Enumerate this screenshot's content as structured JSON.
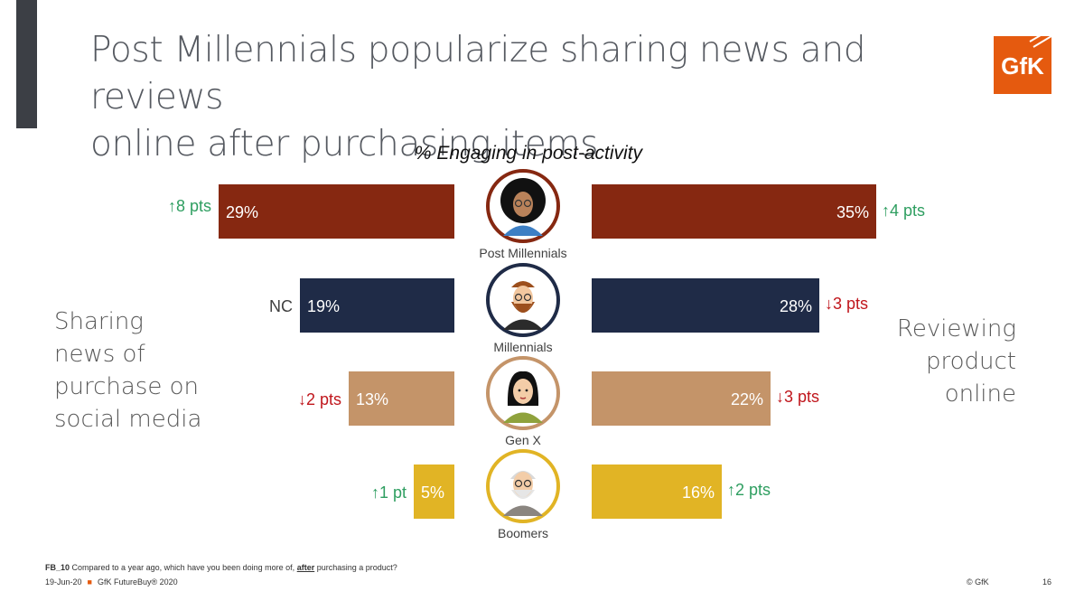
{
  "slide": {
    "title_line1": "Post Millennials popularize sharing news and reviews",
    "title_line2": "online after purchasing items",
    "logo_text": "GfK",
    "footnote_code": "FB_10",
    "footnote_text_before": "Compared to a year ago, which have you been doing more of,",
    "footnote_emphasis": "after",
    "footnote_text_after": "purchasing a product?",
    "date": "19-Jun-20",
    "source": "GfK FutureBuy® 2020",
    "copyright": "© GfK",
    "page_number": "16"
  },
  "chart_data": {
    "type": "bar",
    "title": "% Engaging in post-activity",
    "categories": [
      "Post Millennials",
      "Millennials",
      "Gen X",
      "Boomers"
    ],
    "series": [
      {
        "name": "Sharing news of purchase on social media",
        "name_lines": [
          "Sharing",
          "news of",
          "purchase on",
          "social media"
        ],
        "values": [
          29,
          19,
          13,
          5
        ],
        "labels": [
          "29%",
          "19%",
          "13%",
          "5%"
        ],
        "changes": [
          "↑8 pts",
          "NC",
          "↓2 pts",
          "↑1 pt"
        ],
        "change_dirs": [
          "up",
          "none",
          "down",
          "up"
        ]
      },
      {
        "name": "Reviewing product online",
        "name_lines": [
          "Reviewing",
          "product",
          "online"
        ],
        "values": [
          35,
          28,
          22,
          16
        ],
        "labels": [
          "35%",
          "28%",
          "22%",
          "16%"
        ],
        "changes": [
          "↑4 pts",
          "↓3 pts",
          "↓3 pts",
          "↑2 pts"
        ],
        "change_dirs": [
          "up",
          "down",
          "down",
          "up"
        ]
      }
    ],
    "colors": {
      "categories": [
        "#862811",
        "#1f2b47",
        "#c49469",
        "#e1b425"
      ],
      "up": "#2e9e60",
      "down": "#c0161c",
      "none": "#404040",
      "avatar_rings": [
        "#862811",
        "#1f2b47",
        "#c49469",
        "#e1b425"
      ]
    },
    "avatar_icons": [
      "woman-curly-hair-avatar-icon",
      "bearded-man-avatar-icon",
      "woman-avatar-icon",
      "elderly-man-avatar-icon"
    ]
  }
}
